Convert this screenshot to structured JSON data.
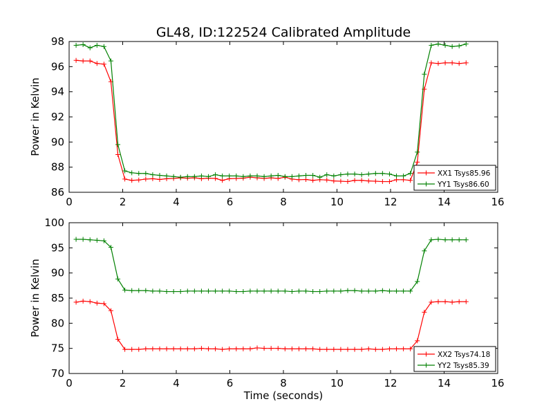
{
  "figure": {
    "title": "GL48, ID:122524 Calibrated Amplitude"
  },
  "chart_data": [
    {
      "type": "line",
      "title": "GL48, ID:122524 Calibrated Amplitude",
      "xlabel": "",
      "ylabel": "Power in Kelvin",
      "xlim": [
        0,
        16
      ],
      "ylim": [
        86,
        98
      ],
      "xticks": [
        0,
        2,
        4,
        6,
        8,
        10,
        12,
        14,
        16
      ],
      "yticks": [
        86,
        88,
        90,
        92,
        94,
        96,
        98
      ],
      "grid": false,
      "legend_position": "lower right",
      "x": [
        0.26,
        0.52,
        0.78,
        1.04,
        1.3,
        1.56,
        1.82,
        2.08,
        2.34,
        2.6,
        2.86,
        3.12,
        3.38,
        3.64,
        3.9,
        4.16,
        4.42,
        4.68,
        4.94,
        5.2,
        5.46,
        5.72,
        5.98,
        6.24,
        6.5,
        6.76,
        7.02,
        7.28,
        7.54,
        7.8,
        8.06,
        8.32,
        8.58,
        8.84,
        9.1,
        9.36,
        9.62,
        9.88,
        10.14,
        10.4,
        10.66,
        10.92,
        11.18,
        11.44,
        11.7,
        11.96,
        12.22,
        12.48,
        12.74,
        13.0,
        13.26,
        13.52,
        13.78,
        14.04,
        14.3,
        14.56,
        14.82
      ],
      "series": [
        {
          "name": "XX1 Tsys85.96",
          "color": "#ff0000",
          "marker": "+",
          "values": [
            96.5,
            96.45,
            96.45,
            96.25,
            96.2,
            94.8,
            89.0,
            87.05,
            86.95,
            86.98,
            87.05,
            87.08,
            87.02,
            87.08,
            87.1,
            87.15,
            87.12,
            87.15,
            87.08,
            87.12,
            87.1,
            86.95,
            87.08,
            87.1,
            87.12,
            87.2,
            87.15,
            87.1,
            87.15,
            87.1,
            87.2,
            87.05,
            87.0,
            87.02,
            86.95,
            87.0,
            86.98,
            86.9,
            86.88,
            86.85,
            86.95,
            86.95,
            86.9,
            86.88,
            86.85,
            86.85,
            87.0,
            87.0,
            86.95,
            88.4,
            94.2,
            96.3,
            96.25,
            96.3,
            96.3,
            96.25,
            96.3
          ]
        },
        {
          "name": "YY1 Tsys86.60",
          "color": "#008000",
          "marker": "+",
          "values": [
            97.7,
            97.75,
            97.5,
            97.7,
            97.6,
            96.45,
            89.8,
            87.7,
            87.55,
            87.5,
            87.5,
            87.4,
            87.35,
            87.3,
            87.25,
            87.2,
            87.25,
            87.25,
            87.3,
            87.25,
            87.4,
            87.3,
            87.3,
            87.3,
            87.25,
            87.3,
            87.3,
            87.25,
            87.3,
            87.35,
            87.25,
            87.25,
            87.3,
            87.35,
            87.35,
            87.2,
            87.4,
            87.3,
            87.4,
            87.45,
            87.45,
            87.4,
            87.45,
            87.5,
            87.5,
            87.45,
            87.3,
            87.3,
            87.5,
            89.2,
            95.4,
            97.7,
            97.8,
            97.7,
            97.6,
            97.65,
            97.8
          ]
        }
      ]
    },
    {
      "type": "line",
      "title": "",
      "xlabel": "Time (seconds)",
      "ylabel": "Power in Kelvin",
      "xlim": [
        0,
        16
      ],
      "ylim": [
        70,
        100
      ],
      "xticks": [
        0,
        2,
        4,
        6,
        8,
        10,
        12,
        14,
        16
      ],
      "yticks": [
        70,
        75,
        80,
        85,
        90,
        95,
        100
      ],
      "grid": false,
      "legend_position": "lower right",
      "x": [
        0.26,
        0.52,
        0.78,
        1.04,
        1.3,
        1.56,
        1.82,
        2.08,
        2.34,
        2.6,
        2.86,
        3.12,
        3.38,
        3.64,
        3.9,
        4.16,
        4.42,
        4.68,
        4.94,
        5.2,
        5.46,
        5.72,
        5.98,
        6.24,
        6.5,
        6.76,
        7.02,
        7.28,
        7.54,
        7.8,
        8.06,
        8.32,
        8.58,
        8.84,
        9.1,
        9.36,
        9.62,
        9.88,
        10.14,
        10.4,
        10.66,
        10.92,
        11.18,
        11.44,
        11.7,
        11.96,
        12.22,
        12.48,
        12.74,
        13.0,
        13.26,
        13.52,
        13.78,
        14.04,
        14.3,
        14.56,
        14.82
      ],
      "series": [
        {
          "name": "XX2 Tsys74.18",
          "color": "#ff0000",
          "marker": "+",
          "values": [
            84.2,
            84.4,
            84.3,
            84.0,
            83.9,
            82.5,
            76.8,
            74.8,
            74.8,
            74.8,
            74.9,
            74.9,
            74.9,
            74.9,
            74.9,
            74.9,
            74.9,
            74.9,
            75.0,
            74.9,
            74.9,
            74.8,
            74.9,
            74.9,
            74.9,
            74.9,
            75.1,
            75.0,
            75.0,
            75.0,
            74.9,
            74.9,
            74.9,
            74.9,
            74.9,
            74.8,
            74.8,
            74.8,
            74.8,
            74.8,
            74.8,
            74.8,
            74.9,
            74.8,
            74.8,
            74.9,
            74.9,
            74.9,
            74.9,
            76.5,
            82.2,
            84.2,
            84.3,
            84.3,
            84.2,
            84.3,
            84.3
          ]
        },
        {
          "name": "YY2 Tsys85.39",
          "color": "#008000",
          "marker": "+",
          "values": [
            96.7,
            96.7,
            96.6,
            96.5,
            96.4,
            95.1,
            88.8,
            86.6,
            86.5,
            86.5,
            86.5,
            86.4,
            86.4,
            86.3,
            86.3,
            86.3,
            86.4,
            86.4,
            86.4,
            86.4,
            86.4,
            86.4,
            86.4,
            86.3,
            86.3,
            86.4,
            86.4,
            86.4,
            86.4,
            86.4,
            86.4,
            86.3,
            86.4,
            86.4,
            86.3,
            86.3,
            86.4,
            86.4,
            86.4,
            86.5,
            86.5,
            86.4,
            86.4,
            86.4,
            86.5,
            86.4,
            86.4,
            86.4,
            86.4,
            88.3,
            94.4,
            96.6,
            96.7,
            96.6,
            96.6,
            96.6,
            96.6
          ]
        }
      ]
    }
  ]
}
